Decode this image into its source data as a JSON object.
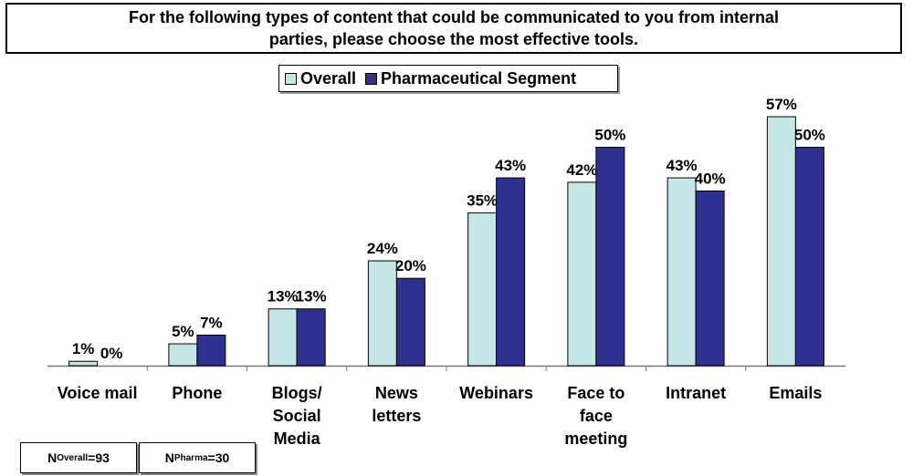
{
  "chart_data": {
    "type": "bar",
    "title": "For the following types of content that could be communicated to you from internal parties, please choose the most effective tools.",
    "categories": [
      [
        "Voice mail"
      ],
      [
        "Phone"
      ],
      [
        "Blogs/",
        "Social",
        "Media"
      ],
      [
        "News",
        "letters"
      ],
      [
        "Webinars"
      ],
      [
        "Face to",
        "face",
        "meeting"
      ],
      [
        "Intranet"
      ],
      [
        "Emails"
      ]
    ],
    "series": [
      {
        "name": "Overall",
        "values": [
          1,
          5,
          13,
          24,
          35,
          42,
          43,
          57
        ],
        "labels": [
          "1%",
          "5%",
          "13%",
          "24%",
          "35%",
          "42%",
          "43%",
          "57%"
        ],
        "color": "#c5e6e8"
      },
      {
        "name": "Pharmaceutical Segment",
        "values": [
          0,
          7,
          13,
          20,
          43,
          50,
          40,
          50
        ],
        "labels": [
          "0%",
          "7%",
          "13%",
          "20%",
          "43%",
          "50%",
          "40%",
          "50%"
        ],
        "color": "#2e3192"
      }
    ],
    "ylim": [
      0,
      57
    ],
    "grid": false,
    "legend_position": "top-center"
  },
  "footnotes": {
    "overall": {
      "prefix": "N ",
      "sub": "Overall",
      "suffix": "=93"
    },
    "pharma": {
      "prefix": "N ",
      "sub": "Pharma",
      "suffix": "=30"
    }
  }
}
